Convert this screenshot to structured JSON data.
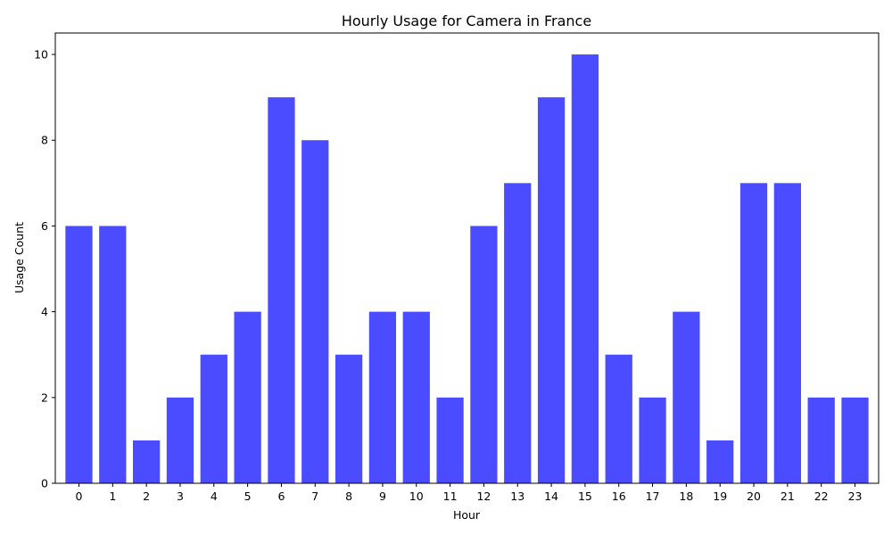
{
  "chart_data": {
    "type": "bar",
    "title": "Hourly Usage for Camera in France",
    "xlabel": "Hour",
    "ylabel": "Usage Count",
    "categories": [
      "0",
      "1",
      "2",
      "3",
      "4",
      "5",
      "6",
      "7",
      "8",
      "9",
      "10",
      "11",
      "12",
      "13",
      "14",
      "15",
      "16",
      "17",
      "18",
      "19",
      "20",
      "21",
      "22",
      "23"
    ],
    "values": [
      6,
      6,
      1,
      2,
      3,
      4,
      9,
      8,
      3,
      4,
      4,
      2,
      6,
      7,
      9,
      10,
      3,
      2,
      4,
      1,
      7,
      7,
      2,
      2
    ],
    "ylim": [
      0,
      10.5
    ],
    "yticks": [
      0,
      2,
      4,
      6,
      8,
      10
    ],
    "grid": false,
    "bar_color": "#4b4bff",
    "axis_color": "#000000"
  }
}
